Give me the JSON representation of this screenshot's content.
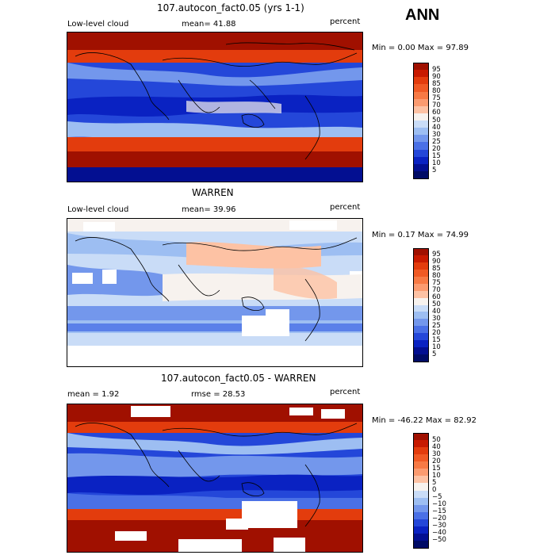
{
  "season": "ANN",
  "panels": [
    {
      "title": "107.autocon_fact0.05 (yrs 1-1)",
      "left_label": "Low-level cloud",
      "mid_label": "mean=  41.88",
      "right_label": "percent",
      "minmax": "Min =    0.00 Max =  97.89",
      "colorbar": {
        "labels": [
          "95",
          "90",
          "85",
          "80",
          "75",
          "70",
          "60",
          "50",
          "40",
          "30",
          "25",
          "20",
          "15",
          "10",
          "5"
        ],
        "colors": [
          "#a01000",
          "#c81a00",
          "#e33c0d",
          "#f05a25",
          "#f77a45",
          "#fb9b70",
          "#fdc2a4",
          "#f7f2ee",
          "#c9dcf7",
          "#9dbef2",
          "#7397ec",
          "#4a70e6",
          "#2447d9",
          "#0a22c2",
          "#030f91",
          "#000b66"
        ]
      }
    },
    {
      "title": "WARREN",
      "left_label": "Low-level cloud",
      "mid_label": "mean=  39.96",
      "right_label": "percent",
      "minmax": "Min =    0.17 Max =  74.99",
      "colorbar": {
        "labels": [
          "95",
          "90",
          "85",
          "80",
          "75",
          "70",
          "60",
          "50",
          "40",
          "30",
          "25",
          "20",
          "15",
          "10",
          "5"
        ],
        "colors": [
          "#a01000",
          "#c81a00",
          "#e33c0d",
          "#f05a25",
          "#f77a45",
          "#fb9b70",
          "#fdc2a4",
          "#f7f2ee",
          "#c9dcf7",
          "#9dbef2",
          "#7397ec",
          "#4a70e6",
          "#2447d9",
          "#0a22c2",
          "#030f91",
          "#000b66"
        ]
      }
    },
    {
      "title": "107.autocon_fact0.05 - WARREN",
      "left_label": "mean =    1.92",
      "mid_label": "rmse =  28.53",
      "right_label": "percent",
      "minmax": "Min = -46.22 Max =  82.92",
      "colorbar": {
        "labels": [
          "50",
          "40",
          "30",
          "20",
          "15",
          "10",
          "5",
          "0",
          "−5",
          "−10",
          "−15",
          "−20",
          "−30",
          "−40",
          "−50"
        ],
        "colors": [
          "#a01000",
          "#c81a00",
          "#e33c0d",
          "#f05a25",
          "#f77a45",
          "#fb9b70",
          "#fdc2a4",
          "#f7f2ee",
          "#c9dcf7",
          "#9dbef2",
          "#7397ec",
          "#4a70e6",
          "#2447d9",
          "#0a22c2",
          "#030f91",
          "#000b66"
        ]
      }
    }
  ]
}
